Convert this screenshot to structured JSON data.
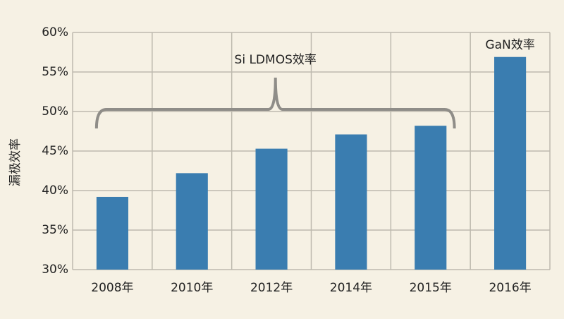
{
  "chart_data": {
    "type": "bar",
    "y_label": "漏极效率",
    "categories": [
      "2008年",
      "2010年",
      "2012年",
      "2014年",
      "2015年",
      "2016年"
    ],
    "values": [
      39.2,
      42.2,
      45.3,
      47.1,
      48.2,
      56.9
    ],
    "color": "#3a7db0",
    "ylim": [
      30,
      60
    ],
    "yticks": [
      {
        "value": 30,
        "label": "30%"
      },
      {
        "value": 35,
        "label": "35%"
      },
      {
        "value": 40,
        "label": "40%"
      },
      {
        "value": 45,
        "label": "45%"
      },
      {
        "value": 50,
        "label": "50%"
      },
      {
        "value": 55,
        "label": "55%"
      },
      {
        "value": 60,
        "label": "60%"
      }
    ],
    "grid": true,
    "annotations": [
      "Si LDMOS效率",
      "GaN效率"
    ]
  }
}
